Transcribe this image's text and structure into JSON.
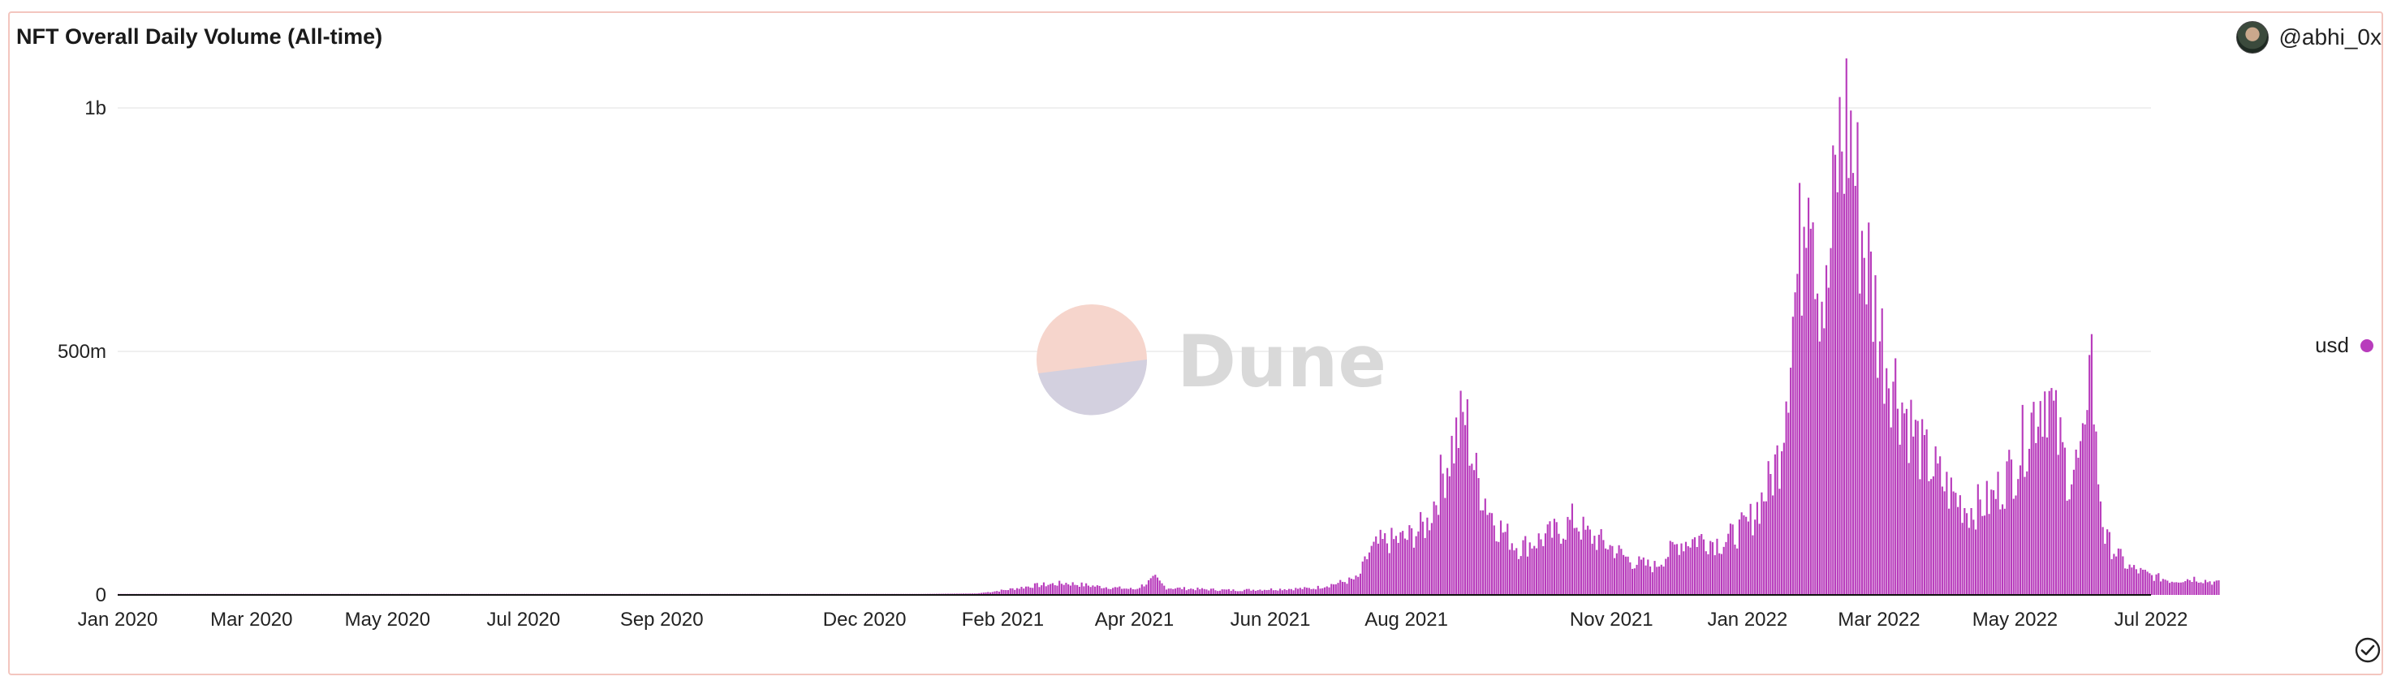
{
  "header": {
    "title": "NFT Overall Daily Volume (All-time)",
    "author": "@abhi_0x"
  },
  "watermark": {
    "text": "Dune"
  },
  "legend": {
    "label": "usd",
    "color": "#b83cbc"
  },
  "chart_data": {
    "type": "bar",
    "title": "NFT Overall Daily Volume (All-time)",
    "xlabel": "",
    "ylabel": "",
    "x_start": "2020-01-01",
    "x_end": "2022-07-01",
    "x_ticks": [
      "Jan 2020",
      "Mar 2020",
      "May 2020",
      "Jul 2020",
      "Sep 2020",
      "Dec 2020",
      "Feb 2021",
      "Apr 2021",
      "Jun 2021",
      "Aug 2021",
      "Nov 2021",
      "Jan 2022",
      "Mar 2022",
      "May 2022",
      "Jul 2022"
    ],
    "y_ticks": [
      "0",
      "500m",
      "1b"
    ],
    "ylim": [
      0,
      1000000000
    ],
    "grid": "horizontal",
    "legend_position": "right",
    "series": [
      {
        "name": "usd",
        "color": "#b83cbc",
        "points": [
          [
            "2020-01-01",
            1
          ],
          [
            "2020-07-01",
            1
          ],
          [
            "2020-12-01",
            1
          ],
          [
            "2021-01-20",
            3
          ],
          [
            "2021-02-01",
            10
          ],
          [
            "2021-02-15",
            20
          ],
          [
            "2021-03-01",
            25
          ],
          [
            "2021-03-15",
            18
          ],
          [
            "2021-04-01",
            12
          ],
          [
            "2021-04-10",
            35
          ],
          [
            "2021-04-15",
            15
          ],
          [
            "2021-05-01",
            12
          ],
          [
            "2021-05-15",
            10
          ],
          [
            "2021-06-01",
            12
          ],
          [
            "2021-06-20",
            14
          ],
          [
            "2021-07-01",
            25
          ],
          [
            "2021-07-10",
            35
          ],
          [
            "2021-07-15",
            90
          ],
          [
            "2021-07-20",
            110
          ],
          [
            "2021-08-01",
            120
          ],
          [
            "2021-08-10",
            150
          ],
          [
            "2021-08-20",
            300
          ],
          [
            "2021-08-27",
            380
          ],
          [
            "2021-09-01",
            250
          ],
          [
            "2021-09-10",
            150
          ],
          [
            "2021-09-20",
            100
          ],
          [
            "2021-10-01",
            120
          ],
          [
            "2021-10-10",
            140
          ],
          [
            "2021-10-15",
            160
          ],
          [
            "2021-10-20",
            130
          ],
          [
            "2021-11-01",
            100
          ],
          [
            "2021-11-10",
            70
          ],
          [
            "2021-11-20",
            60
          ],
          [
            "2021-12-01",
            110
          ],
          [
            "2021-12-10",
            120
          ],
          [
            "2021-12-20",
            110
          ],
          [
            "2021-12-25",
            125
          ],
          [
            "2022-01-01",
            150
          ],
          [
            "2022-01-10",
            230
          ],
          [
            "2022-01-15",
            300
          ],
          [
            "2022-01-20",
            550
          ],
          [
            "2022-01-25",
            750
          ],
          [
            "2022-01-28",
            1030
          ],
          [
            "2022-02-01",
            700
          ],
          [
            "2022-02-05",
            600
          ],
          [
            "2022-02-10",
            920
          ],
          [
            "2022-02-15",
            1010
          ],
          [
            "2022-02-20",
            800
          ],
          [
            "2022-03-01",
            550
          ],
          [
            "2022-03-10",
            420
          ],
          [
            "2022-03-20",
            300
          ],
          [
            "2022-04-01",
            220
          ],
          [
            "2022-04-10",
            180
          ],
          [
            "2022-04-20",
            200
          ],
          [
            "2022-05-01",
            280
          ],
          [
            "2022-05-10",
            400
          ],
          [
            "2022-05-15",
            440
          ],
          [
            "2022-05-20",
            330
          ],
          [
            "2022-05-25",
            250
          ],
          [
            "2022-06-01",
            300
          ],
          [
            "2022-06-03",
            610
          ],
          [
            "2022-06-06",
            300
          ],
          [
            "2022-06-10",
            120
          ],
          [
            "2022-06-20",
            60
          ],
          [
            "2022-07-01",
            40
          ],
          [
            "2022-07-10",
            30
          ],
          [
            "2022-07-20",
            35
          ],
          [
            "2022-07-31",
            25
          ]
        ],
        "unit": "m"
      }
    ]
  }
}
